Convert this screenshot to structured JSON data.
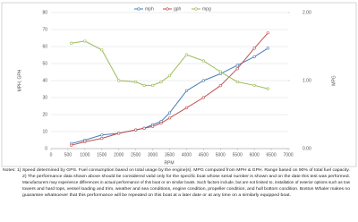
{
  "chart_data": {
    "type": "line",
    "x": [
      600,
      1000,
      1500,
      2000,
      2500,
      2750,
      3000,
      3250,
      3500,
      4000,
      4500,
      5000,
      5500,
      6000,
      6400
    ],
    "series": [
      {
        "name": "mph",
        "color": "#4a7ebb",
        "values": [
          3,
          5,
          8,
          9,
          11,
          12,
          14,
          16,
          21,
          34,
          40,
          44,
          49,
          54,
          59
        ]
      },
      {
        "name": "gph",
        "color": "#c0504d",
        "values": [
          2,
          4,
          6,
          9,
          11,
          12,
          13,
          15,
          18,
          24,
          30,
          37,
          47,
          59,
          68
        ]
      },
      {
        "name": "mpg",
        "color": "#9bbb59",
        "axis": "y2",
        "values": [
          1.55,
          1.58,
          1.45,
          1.0,
          0.98,
          0.93,
          0.93,
          0.98,
          1.07,
          1.38,
          1.29,
          1.13,
          0.98,
          0.93,
          0.88
        ]
      }
    ],
    "xlabel": "RPM",
    "ylabel": "MPH, GPH",
    "y2label": "MPG",
    "xlim": [
      0,
      7000
    ],
    "xticks": [
      0,
      500,
      1000,
      1500,
      2000,
      2500,
      3000,
      3500,
      4000,
      4500,
      5000,
      5500,
      6000,
      6500,
      7000
    ],
    "ylim": [
      0,
      80
    ],
    "yticks": [
      0,
      10,
      20,
      30,
      40,
      50,
      60,
      70,
      80
    ],
    "y2lim": [
      0,
      2
    ],
    "y2ticks": [
      {
        "value": 0,
        "label": "0.00"
      },
      {
        "value": 1,
        "label": "1.00"
      },
      {
        "value": 2,
        "label": "2.00"
      }
    ],
    "grid": true,
    "legend": "top"
  },
  "notes": [
    "Notes: 1) Speed determined by GPS. Fuel consumption based on total usage by the engine(s). MPG computed from MPH & GPH. Range based on 90% of total fuel capacity.",
    "2) The performance data shown above should be considered valid only for the specific boat whose serial number is shown and on the date this test was performed.",
    "Manufacturers may experience differences in actual performance of this boat or on similar boats. Such factors include, but are not limited to, installation of exterior options such as tow",
    "towers and hard tops, vessel loading and trim, weather and sea conditions, engine condition, propeller condition, and hull bottom condition. Boston Whaler makes no",
    "guarantee whatsoever that this performance will be repeated on this boat at a later date or at any time on a similarly equipped boat."
  ]
}
